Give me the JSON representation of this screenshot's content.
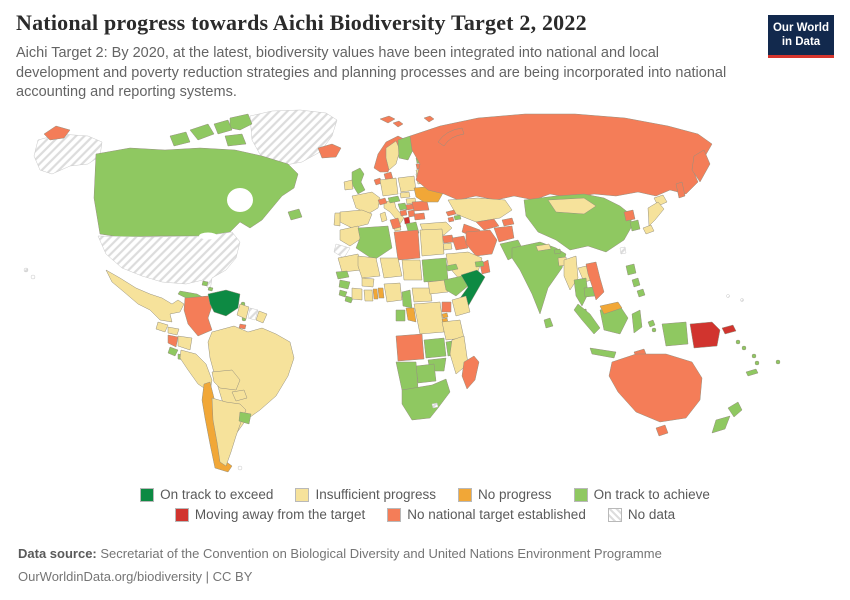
{
  "header": {
    "title": "National progress towards Aichi Biodiversity Target 2, 2022",
    "subtitle": "Aichi Target 2: By 2020, at the latest, biodiversity values have been integrated into national and local development and poverty reduction strategies and planning processes and are being incorporated into national accounting and reporting systems.",
    "logo": {
      "line1": "Our World",
      "line2": "in Data",
      "bg": "#12294d",
      "accent": "#d6352d"
    }
  },
  "chart_data": {
    "type": "choropleth-world-map",
    "title": "National progress towards Aichi Biodiversity Target 2, 2022",
    "legend_position": "bottom",
    "categories": {
      "exceed": {
        "label": "On track to exceed",
        "color": "#0d8a43"
      },
      "insufficient": {
        "label": "Insufficient progress",
        "color": "#f6e29b"
      },
      "no_progress": {
        "label": "No progress",
        "color": "#f1a737"
      },
      "achieve": {
        "label": "On track to achieve",
        "color": "#8fc861"
      },
      "away": {
        "label": "Moving away from the target",
        "color": "#d1342e"
      },
      "no_target": {
        "label": "No national target established",
        "color": "#f47d58"
      },
      "no_data": {
        "label": "No data",
        "color": "#ffffff",
        "hatched": true
      }
    },
    "legend_order": [
      [
        "exceed",
        "insufficient",
        "no_progress",
        "achieve"
      ],
      [
        "away",
        "no_target",
        "no_data"
      ]
    ],
    "regions": {
      "greenland": "no_data",
      "canada": "achieve",
      "alaska": "no_data",
      "chukotka": "no_target",
      "usa": "no_data",
      "hawaii": "no_data",
      "mexico": "insufficient",
      "guatemala": "insufficient",
      "honduras": "insufficient",
      "nicaragua": "no_target",
      "costa_rica": "achieve",
      "panama": "achieve",
      "cuba": "achieve",
      "jamaica": "achieve",
      "haiti": "away",
      "dominican_republic": "achieve",
      "puerto_rico": "no_data",
      "bahamas": "achieve",
      "lesser_antilles": "achieve",
      "lesser_antilles_s": "no_target",
      "trinidad": "no_target",
      "colombia": "no_target",
      "venezuela": "exceed",
      "guyana": "insufficient",
      "suriname": "no_data",
      "french_guiana": "insufficient",
      "ecuador": "insufficient",
      "peru": "insufficient",
      "brazil": "insufficient",
      "bolivia": "insufficient",
      "paraguay": "insufficient",
      "chile": "no_progress",
      "argentina": "insufficient",
      "uruguay": "achieve",
      "falklands": "no_data",
      "iceland": "no_target",
      "svalbard": "no_target",
      "uk": "achieve",
      "ireland": "insufficient",
      "norway": "no_target",
      "sweden": "insufficient",
      "finland": "achieve",
      "denmark": "no_target",
      "netherlands": "no_target",
      "estonia": "achieve",
      "latvia": "no_target",
      "lithuania": "insufficient",
      "poland": "insufficient",
      "germany": "insufficient",
      "france": "insufficient",
      "spain": "insufficient",
      "portugal": "insufficient",
      "italy": "insufficient",
      "sardinia": "insufficient",
      "sicily": "insufficient",
      "switzerland": "no_target",
      "austria": "achieve",
      "czechia": "insufficient",
      "slovakia": "insufficient",
      "hungary": "no_target",
      "croatia": "achieve",
      "bosnia": "no_target",
      "serbia": "no_target",
      "albania": "away",
      "greece": "achieve",
      "bulgaria": "no_target",
      "romania": "no_target",
      "moldova": "no_target",
      "belarus": "insufficient",
      "ukraine": "no_progress",
      "russia": "no_target",
      "kazakhstan": "insufficient",
      "uzbekistan": "no_target",
      "turkmenistan": "no_target",
      "kyrgyzstan": "no_target",
      "tajikistan": "insufficient",
      "georgia": "no_target",
      "armenia": "no_target",
      "azerbaijan": "achieve",
      "turkey": "insufficient",
      "syria": "no_target",
      "iraq": "no_target",
      "iran": "no_target",
      "afghanistan": "no_target",
      "israel": "insufficient",
      "jordan": "insufficient",
      "saudi_arabia": "insufficient",
      "yemen": "no_progress",
      "oman": "no_target",
      "uae": "achieve",
      "morocco": "insufficient",
      "western_sahara": "no_data",
      "algeria": "achieve",
      "tunisia": "no_target",
      "libya": "no_target",
      "egypt": "insufficient",
      "mauritania": "insufficient",
      "mali": "insufficient",
      "senegal": "achieve",
      "guinea": "achieve",
      "sierra_leone": "achieve",
      "liberia": "achieve",
      "ivory_coast": "insufficient",
      "ghana": "insufficient",
      "togo": "no_progress",
      "benin": "no_progress",
      "burkina_faso": "insufficient",
      "niger": "insufficient",
      "nigeria": "insufficient",
      "chad": "insufficient",
      "cameroon": "achieve",
      "central_african_republic": "insufficient",
      "sudan": "achieve",
      "south_sudan": "insufficient",
      "eritrea": "achieve",
      "ethiopia": "achieve",
      "somalia": "exceed",
      "kenya": "insufficient",
      "uganda": "no_target",
      "drc": "insufficient",
      "gabon": "achieve",
      "congo": "no_progress",
      "rwanda": "no_progress",
      "burundi": "no_progress",
      "tanzania": "insufficient",
      "angola": "no_target",
      "zambia": "achieve",
      "malawi": "achieve",
      "mozambique": "insufficient",
      "zimbabwe": "achieve",
      "botswana": "achieve",
      "namibia": "achieve",
      "south_africa": "achieve",
      "lesotho": "no_data",
      "madagascar": "no_target",
      "pakistan": "achieve",
      "india": "achieve",
      "nepal": "insufficient",
      "bhutan": "achieve",
      "bangladesh": "insufficient",
      "sri_lanka": "achieve",
      "china": "achieve",
      "mongolia": "insufficient",
      "myanmar": "insufficient",
      "laos": "insufficient",
      "thailand": "achieve",
      "cambodia": "achieve",
      "vietnam": "no_target",
      "north_korea": "no_target",
      "south_korea": "achieve",
      "japan": "insufficient",
      "taiwan": "no_data",
      "philippines": "achieve",
      "malaysia": "achieve",
      "malaysia_borneo": "no_progress",
      "indonesia": "achieve",
      "papua_new_guinea": "away",
      "timor": "no_target",
      "solomon_islands": "achieve",
      "vanuatu": "achieve",
      "new_caledonia": "achieve",
      "fiji": "achieve",
      "pacific_islands": "no_data",
      "australia": "no_target",
      "new_zealand": "achieve"
    }
  },
  "legend": {
    "note": "two rows, centered"
  },
  "footer": {
    "datasource_label": "Data source:",
    "datasource": "Secretariat of the Convention on Biological Diversity and United Nations Environment Programme",
    "link": "OurWorldinData.org/biodiversity",
    "separator": "|",
    "license": "CC BY"
  }
}
